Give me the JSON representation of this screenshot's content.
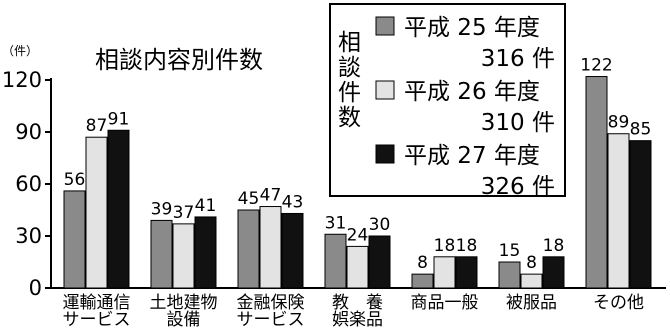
{
  "chart_data": {
    "type": "bar",
    "title": "相談内容別件数",
    "ylabel": "（件）",
    "ylim": [
      0,
      120
    ],
    "yticks": [
      0,
      30,
      60,
      90,
      120
    ],
    "categories": [
      [
        "運輸通信",
        "サービス"
      ],
      [
        "土地建物",
        "設備"
      ],
      [
        "金融保険",
        "サービス"
      ],
      [
        "教　養",
        "娯楽品"
      ],
      [
        "商品一般"
      ],
      [
        "被服品"
      ],
      [
        "その他"
      ]
    ],
    "series": [
      {
        "name": "平成 25 年度",
        "total": "316 件",
        "color": "#8a8a8a",
        "values": [
          56,
          39,
          45,
          31,
          8,
          15,
          122
        ]
      },
      {
        "name": "平成 26 年度",
        "total": "310 件",
        "color": "#e3e3e3",
        "values": [
          87,
          37,
          47,
          24,
          18,
          8,
          89
        ]
      },
      {
        "name": "平成 27 年度",
        "total": "326 件",
        "color": "#111111",
        "values": [
          91,
          41,
          43,
          30,
          18,
          18,
          85
        ]
      }
    ],
    "legend": {
      "heading": [
        "相",
        "談",
        "件",
        "数"
      ],
      "placement": "top-right"
    },
    "grid": false
  }
}
